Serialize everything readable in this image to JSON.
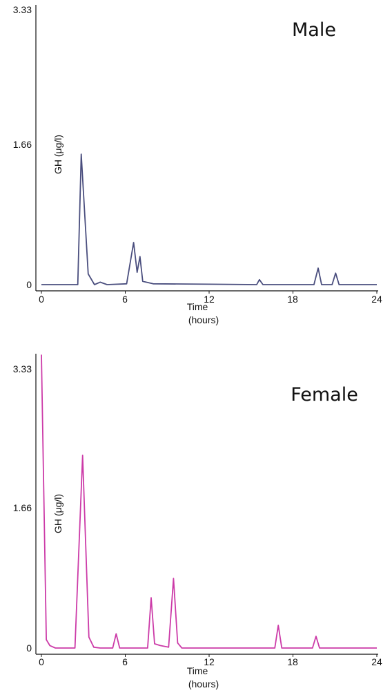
{
  "chart_data": [
    {
      "type": "line",
      "title": "Male",
      "xlabel": "Time",
      "xlabel_unit": "(hours)",
      "ylabel": "GH (μg/l)",
      "xlim": [
        0,
        24
      ],
      "ylim": [
        0,
        3.33
      ],
      "xticks": [
        "0",
        "6",
        "12",
        "18",
        "24"
      ],
      "yticks": [
        "0",
        "1.66",
        "3.33"
      ],
      "color": "#4a4e7e",
      "series": [
        {
          "x": [
            0,
            1,
            2.6,
            2.85,
            3.35,
            3.8,
            4.2,
            4.7,
            6.1,
            6.6,
            6.85,
            7.05,
            7.25,
            8,
            12,
            15.4,
            15.6,
            15.85,
            19.5,
            19.8,
            20.05,
            20.8,
            21.05,
            21.3,
            22,
            24
          ],
          "y": [
            0,
            0,
            0,
            1.58,
            0.13,
            0,
            0.03,
            0,
            0.01,
            0.51,
            0.15,
            0.34,
            0.04,
            0.01,
            0.005,
            0,
            0.06,
            0,
            0,
            0.2,
            0,
            0,
            0.14,
            0,
            0,
            0
          ]
        }
      ]
    },
    {
      "type": "line",
      "title": "Female",
      "xlabel": "Time",
      "xlabel_unit": "(hours)",
      "ylabel": "GH (μg/l)",
      "xlim": [
        0,
        24
      ],
      "ylim": [
        0,
        3.33
      ],
      "xticks": [
        "0",
        "6",
        "12",
        "18",
        "24"
      ],
      "yticks": [
        "0",
        "1.66",
        "3.33"
      ],
      "color": "#cc3ba8",
      "series": [
        {
          "x": [
            0,
            0.35,
            0.6,
            1,
            2.4,
            2.95,
            3.4,
            3.75,
            4.2,
            5.1,
            5.35,
            5.6,
            7.6,
            7.85,
            8.1,
            8.5,
            9.1,
            9.45,
            9.75,
            10.05,
            10.4,
            12,
            16.7,
            16.95,
            17.2,
            19.4,
            19.65,
            19.9,
            24
          ],
          "y": [
            3.5,
            0.1,
            0.03,
            0,
            0,
            2.3,
            0.13,
            0.01,
            0,
            0,
            0.17,
            0,
            0,
            0.6,
            0.05,
            0.03,
            0.01,
            0.83,
            0.06,
            0,
            0,
            0,
            0,
            0.27,
            0,
            0,
            0.14,
            0,
            0
          ]
        }
      ]
    }
  ]
}
